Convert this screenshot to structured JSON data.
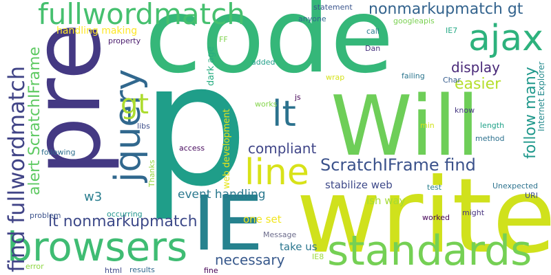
{
  "words": [
    {
      "text": "code",
      "color": "#35b779"
    },
    {
      "text": "p",
      "color": "#1f9e89"
    },
    {
      "text": "pre",
      "color": "#443983"
    },
    {
      "text": "write",
      "color": "#d0e11c"
    },
    {
      "text": "Will",
      "color": "#6ece58"
    },
    {
      "text": "IE",
      "color": "#26828e"
    },
    {
      "text": "browsers",
      "color": "#3fbc73"
    },
    {
      "text": "standards",
      "color": "#75d054"
    },
    {
      "text": "jquery",
      "color": "#31688e"
    },
    {
      "text": "fullwordmatch",
      "color": "#46c06f"
    },
    {
      "text": "ajax",
      "color": "#2db27d"
    },
    {
      "text": "lt",
      "color": "#2c728e"
    },
    {
      "text": "line",
      "color": "#d8e219"
    },
    {
      "text": "gt",
      "color": "#addc30"
    },
    {
      "text": "find fullwordmatch",
      "color": "#414487"
    },
    {
      "text": "ScratchIFrame find",
      "color": "#3b528b"
    },
    {
      "text": "alert ScratchIFrame",
      "color": "#5ec962"
    },
    {
      "text": "nonmarkupmatch gt",
      "color": "#33638d"
    },
    {
      "text": "lt nonmarkupmatch",
      "color": "#3e4a89"
    },
    {
      "text": "compliant",
      "color": "#404688"
    },
    {
      "text": "follow many",
      "color": "#1f988b"
    },
    {
      "text": "display",
      "color": "#482878"
    },
    {
      "text": "easier",
      "color": "#b5de2b"
    },
    {
      "text": "necessary",
      "color": "#38598c"
    },
    {
      "text": "event handling",
      "color": "#2a788e"
    },
    {
      "text": "stabilize web",
      "color": "#3e4989"
    },
    {
      "text": "w3",
      "color": "#287d8e"
    },
    {
      "text": "ish way",
      "color": "#a5db36"
    },
    {
      "text": "one set",
      "color": "#f1e51d"
    },
    {
      "text": "take us",
      "color": "#2a768e"
    },
    {
      "text": "handling making",
      "color": "#fde725"
    },
    {
      "text": "web development",
      "color": "#e5e419"
    },
    {
      "text": "dark age",
      "color": "#27ad81"
    },
    {
      "text": "Internet Explorer",
      "color": "#238a8d"
    },
    {
      "text": "statement",
      "color": "#3a548c"
    },
    {
      "text": "anyone",
      "color": "#306a8e"
    },
    {
      "text": "googleapis",
      "color": "#7ad151"
    },
    {
      "text": "call",
      "color": "#297b8e"
    },
    {
      "text": "IE7",
      "color": "#22a884"
    },
    {
      "text": "property",
      "color": "#481a6c"
    },
    {
      "text": "FF",
      "color": "#7fd34e"
    },
    {
      "text": "added",
      "color": "#1f9f88"
    },
    {
      "text": "Dan",
      "color": "#46337e"
    },
    {
      "text": "wrap",
      "color": "#d5e21a"
    },
    {
      "text": "failing",
      "color": "#2b758e"
    },
    {
      "text": "Char",
      "color": "#365d8d"
    },
    {
      "text": "js",
      "color": "#440154"
    },
    {
      "text": "works",
      "color": "#84d44b"
    },
    {
      "text": "know",
      "color": "#453781"
    },
    {
      "text": "min",
      "color": "#d2e21b"
    },
    {
      "text": "length",
      "color": "#1fa188"
    },
    {
      "text": "libs",
      "color": "#3d4e8a"
    },
    {
      "text": "method",
      "color": "#2d718e"
    },
    {
      "text": "following",
      "color": "#2e6e8e"
    },
    {
      "text": "access",
      "color": "#46085c"
    },
    {
      "text": "Thanks",
      "color": "#95d840"
    },
    {
      "text": "test",
      "color": "#27808e"
    },
    {
      "text": "Unexpected",
      "color": "#2c728e"
    },
    {
      "text": "URI",
      "color": "#3e4c8a"
    },
    {
      "text": "occurring",
      "color": "#1f948c"
    },
    {
      "text": "problem",
      "color": "#3b528b"
    },
    {
      "text": "might",
      "color": "#46327e"
    },
    {
      "text": "worked",
      "color": "#440256"
    },
    {
      "text": "Message",
      "color": "#6c6c8c"
    },
    {
      "text": "IE8",
      "color": "#9bd93c"
    },
    {
      "text": "error",
      "color": "#8fd744"
    },
    {
      "text": "html",
      "color": "#3f4889"
    },
    {
      "text": "results",
      "color": "#31688e"
    },
    {
      "text": "fine",
      "color": "#440154"
    }
  ]
}
